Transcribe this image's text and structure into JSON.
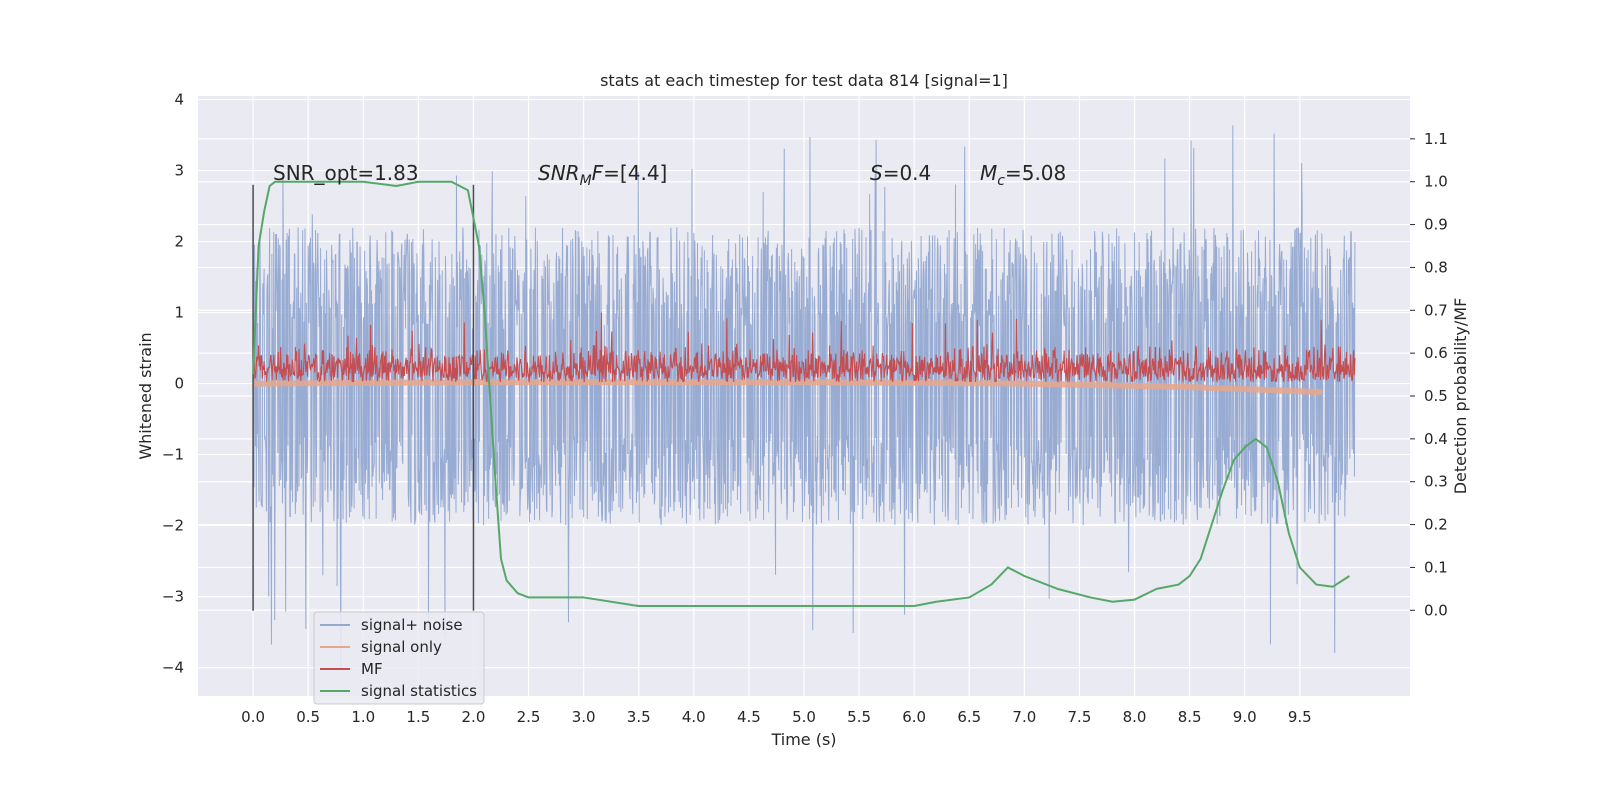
{
  "chart_data": {
    "type": "line",
    "title": "stats at each timestep for test data 814 [signal=1]",
    "xlabel": "Time (s)",
    "ylabel_left": "Whitened strain",
    "ylabel_right": "Detection probability/MF",
    "xlim": [
      -0.5,
      10.5
    ],
    "ylim_left": [
      -4.4,
      4.05
    ],
    "ylim_right": [
      -0.2,
      1.2
    ],
    "x_ticks": [
      "0.0",
      "0.5",
      "1.0",
      "1.5",
      "2.0",
      "2.5",
      "3.0",
      "3.5",
      "4.0",
      "4.5",
      "5.0",
      "5.5",
      "6.0",
      "6.5",
      "7.0",
      "7.5",
      "8.0",
      "8.5",
      "9.0",
      "9.5"
    ],
    "y_ticks_left": [
      "4",
      "3",
      "2",
      "1",
      "0",
      "−1",
      "−2",
      "−3",
      "−4"
    ],
    "y_ticks_right": [
      "1.1",
      "1.0",
      "0.9",
      "0.8",
      "0.7",
      "0.6",
      "0.5",
      "0.4",
      "0.3",
      "0.2",
      "0.1",
      "0.0"
    ],
    "grid": true,
    "legend_position": "lower-left",
    "annotations": {
      "snr_opt": "SNR_opt=1.83",
      "snr_mf_main": "SNR",
      "snr_mf_sub": "M",
      "snr_mf_rest": "F=[4.4]",
      "s_main": "S",
      "s_rest": "=0.4",
      "mc_main": "M",
      "mc_sub": "c",
      "mc_rest": "=5.08"
    },
    "marker_lines_x": [
      0.0,
      2.0
    ],
    "series": [
      {
        "name": "signal+ noise",
        "axis": "left",
        "color": "#94a8d0",
        "x_range": [
          0.0,
          10.0
        ],
        "envelope_typical": [
          -2.0,
          2.2
        ],
        "envelope_extreme": [
          -4.05,
          3.65
        ]
      },
      {
        "name": "signal only",
        "axis": "left",
        "color": "#e6a68c",
        "x_range": [
          0.0,
          9.7
        ],
        "x": [
          0.0,
          2.0,
          5.0,
          7.0,
          8.5,
          9.7
        ],
        "y": [
          0.0,
          0.02,
          0.02,
          0.0,
          -0.05,
          -0.12
        ]
      },
      {
        "name": "MF",
        "axis": "left",
        "color": "#c44e52",
        "x_range": [
          0.0,
          10.0
        ],
        "baseline": 0.02,
        "typical_max": 0.6,
        "peak_max": 1.0
      },
      {
        "name": "signal statistics",
        "axis": "right",
        "color": "#55a868",
        "x": [
          0.0,
          0.05,
          0.1,
          0.15,
          0.2,
          0.5,
          1.0,
          1.3,
          1.5,
          1.8,
          1.95,
          2.05,
          2.1,
          2.15,
          2.2,
          2.25,
          2.3,
          2.4,
          2.5,
          2.6,
          3.0,
          3.5,
          4.0,
          4.5,
          5.0,
          5.5,
          6.0,
          6.2,
          6.5,
          6.7,
          6.85,
          7.0,
          7.3,
          7.6,
          7.8,
          8.0,
          8.2,
          8.4,
          8.5,
          8.6,
          8.7,
          8.8,
          8.9,
          9.0,
          9.1,
          9.2,
          9.3,
          9.4,
          9.5,
          9.65,
          9.8,
          9.95
        ],
        "y": [
          0.55,
          0.85,
          0.93,
          0.99,
          1.0,
          1.0,
          1.0,
          0.99,
          1.0,
          1.0,
          0.98,
          0.85,
          0.7,
          0.5,
          0.3,
          0.12,
          0.07,
          0.04,
          0.03,
          0.03,
          0.03,
          0.01,
          0.01,
          0.01,
          0.01,
          0.01,
          0.01,
          0.02,
          0.03,
          0.06,
          0.1,
          0.08,
          0.05,
          0.03,
          0.02,
          0.025,
          0.05,
          0.06,
          0.08,
          0.12,
          0.2,
          0.28,
          0.35,
          0.38,
          0.4,
          0.38,
          0.3,
          0.18,
          0.1,
          0.06,
          0.055,
          0.08
        ]
      }
    ]
  }
}
